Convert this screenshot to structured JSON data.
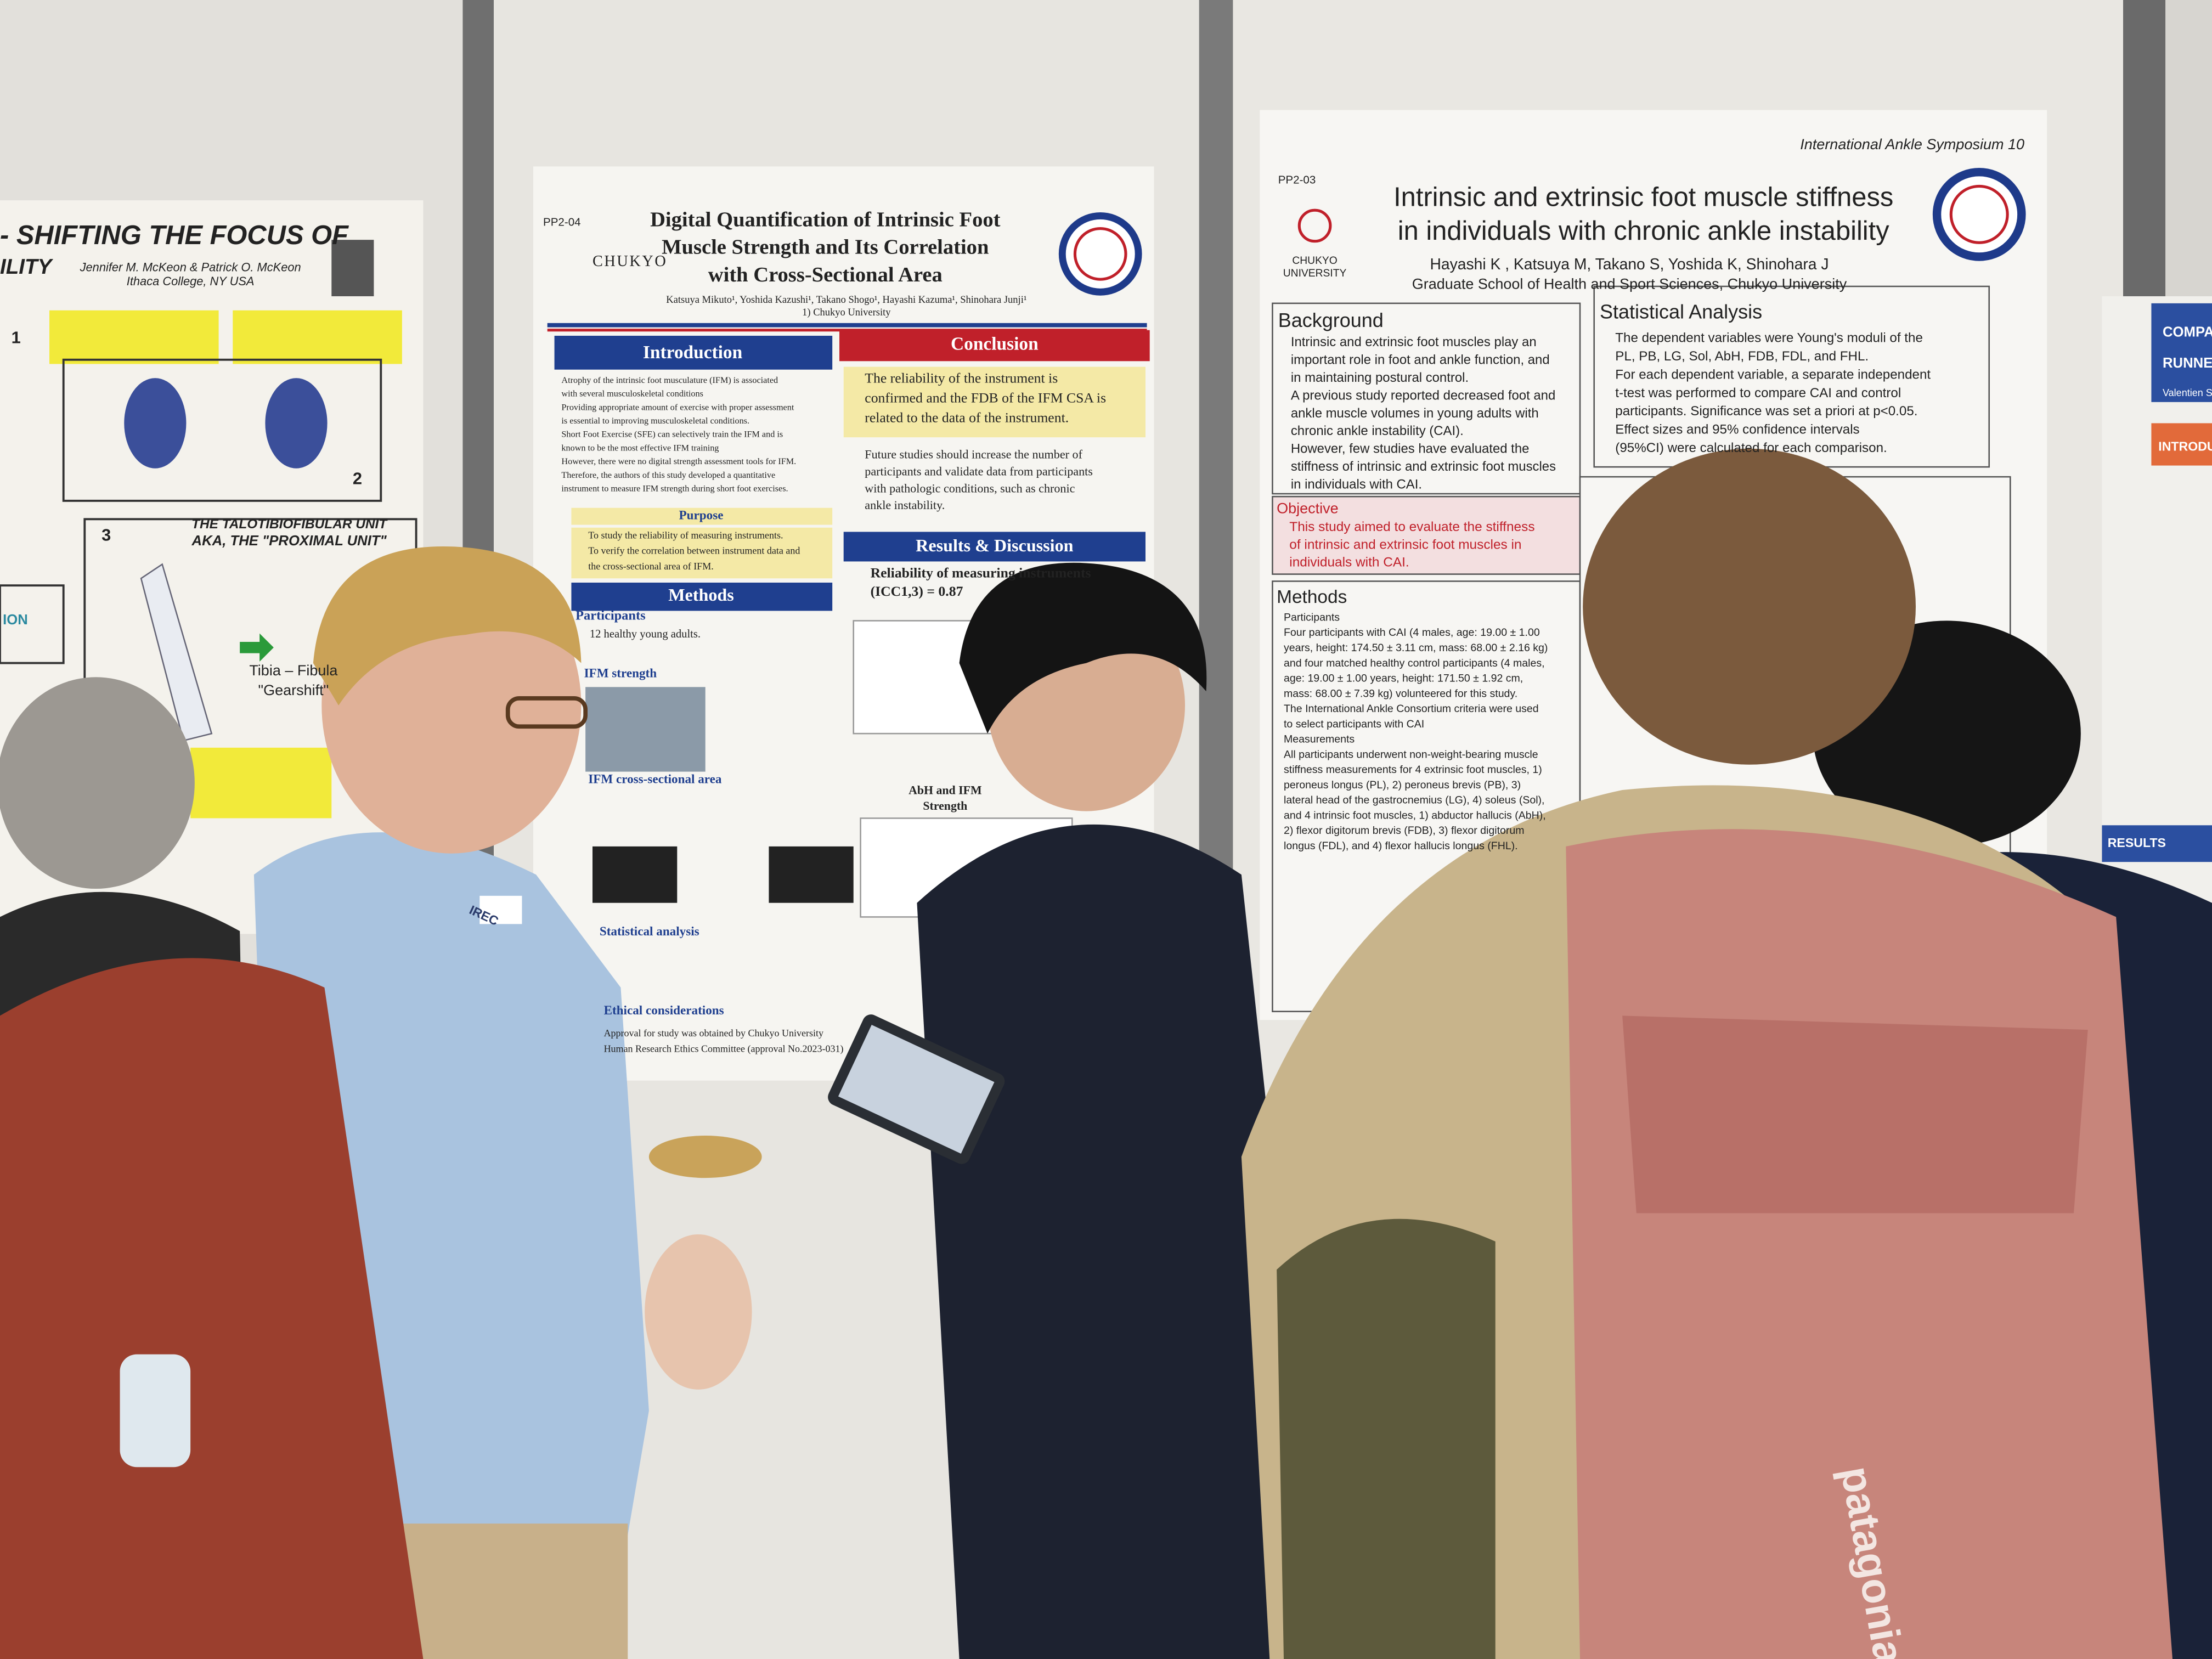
{
  "left_poster": {
    "title": "- SHIFTING THE FOCUS OF",
    "title_2": "ILITY",
    "authors": "Jennifer M. McKeon & Patrick O. McKeon",
    "affiliation": "Ithaca College, NY USA",
    "panel_numbers": [
      "1",
      "2",
      "3"
    ],
    "section_title": "THE TALOTIBIOFIBULAR UNIT",
    "section_subtitle": "AKA, THE \"PROXIMAL UNIT\"",
    "label": "Tibia – Fibula",
    "label_2": "\"Gearshift\"",
    "side_label": "ION"
  },
  "middle_poster": {
    "id": "PP2-04",
    "logo": "CHUKYO",
    "title_lines": [
      "Digital Quantification of Intrinsic Foot",
      "Muscle Strength and Its Correlation",
      "with Cross-Sectional Area"
    ],
    "authors": "Katsuya Mikuto¹, Yoshida Kazushi¹, Takano Shogo¹, Hayashi Kazuma¹, Shinohara Junji¹",
    "affiliation": "1) Chukyo University",
    "introduction": {
      "heading": "Introduction",
      "lines": [
        "Atrophy of the intrinsic foot musculature (IFM) is associated",
        "with several musculoskeletal conditions",
        "Providing appropriate amount of exercise with proper assessment",
        "is essential to improving musculoskeletal conditions.",
        "Short Foot Exercise (SFE) can selectively train the IFM and is",
        "known to be the most effective IFM training",
        "However, there were no digital strength assessment tools for IFM.",
        "Therefore, the authors of this study developed a quantitative",
        "instrument to measure IFM strength during short foot exercises."
      ]
    },
    "purpose": {
      "heading": "Purpose",
      "lines": [
        "To study the reliability of measuring instruments.",
        "To verify the correlation between instrument data and",
        "the cross-sectional area of IFM."
      ]
    },
    "conclusion": {
      "heading": "Conclusion",
      "lines": [
        "The reliability of the instrument is",
        "confirmed and the FDB of the IFM CSA is",
        "related to the data of the instrument."
      ],
      "future": [
        "Future studies should increase the number of",
        "participants and validate data from participants",
        "with pathologic conditions, such as chronic",
        "ankle instability."
      ]
    },
    "methods": {
      "heading": "Methods",
      "participants": "Participants",
      "participants_text": "12 healthy young adults.",
      "strength": "IFM strength",
      "csa": "IFM cross-sectional area",
      "statistics": "Statistical analysis",
      "ethics": "Ethical considerations",
      "ethics_lines": [
        "Approval for study was obtained by Chukyo University",
        "Human Research Ethics Committee (approval No.2023-031)"
      ]
    },
    "results": {
      "heading": "Results & Discussion",
      "lines": [
        "Reliability of measuring instruments",
        "(ICC1,3) = 0.87"
      ]
    },
    "chart_label": [
      "AbH and IFM",
      "Strength"
    ]
  },
  "right_poster": {
    "header": "International Ankle Symposium 10",
    "id": "PP2-03",
    "logo": [
      "CHUKYO",
      "UNIVERSITY"
    ],
    "title_lines": [
      "Intrinsic and extrinsic foot muscle stiffness",
      "in individuals with chronic ankle instability"
    ],
    "authors": "Hayashi K , Katsuya M, Takano S, Yoshida K, Shinohara J",
    "affiliation": "Graduate School of Health and Sport Sciences, Chukyo University",
    "background": {
      "heading": "Background",
      "lines": [
        "Intrinsic and extrinsic foot muscles play an",
        "important role in foot and ankle function, and",
        "in maintaining postural control.",
        "A previous study reported decreased foot and",
        "ankle muscle volumes in young adults with",
        "chronic ankle instability (CAI).",
        "However, few studies have evaluated the",
        "stiffness of intrinsic and extrinsic foot muscles",
        "in individuals with CAI."
      ]
    },
    "statistics": {
      "heading": "Statistical Analysis",
      "lines": [
        "The dependent variables were Young's moduli of the",
        "PL, PB, LG, Sol, AbH, FDB, FDL, and FHL.",
        "For each dependent variable, a separate independent",
        "t-test was performed to compare CAI and control",
        "participants. Significance was set a priori at p<0.05.",
        "Effect sizes and 95% confidence intervals",
        "(95%CI) were calculated for each comparison."
      ]
    },
    "objective": {
      "heading": "Objective",
      "lines": [
        "This study aimed to evaluate the stiffness",
        "of intrinsic and extrinsic foot muscles in",
        "individuals with CAI."
      ]
    },
    "methods": {
      "heading": "Methods",
      "lines": [
        "Participants",
        "Four participants with CAI (4 males, age: 19.00 ± 1.00",
        "years, height: 174.50 ± 3.11 cm, mass: 68.00 ± 2.16 kg)",
        "and four matched healthy control participants (4 males,",
        "age: 19.00 ± 1.00 years, height: 171.50 ± 1.92 cm,",
        "mass: 68.00 ± 7.39 kg) volunteered for this study.",
        "The International Ankle Consortium criteria were used",
        "to select participants with CAI",
        "Measurements",
        "All participants underwent non-weight-bearing muscle",
        "stiffness measurements for 4 extrinsic foot muscles, 1)",
        "peroneus longus (PL), 2) peroneus brevis (PB), 3)",
        "lateral head of the gastrocnemius (LG), 4) soleus (Sol),",
        "and 4 intrinsic foot muscles, 1) abductor hallucis (AbH),",
        "2) flexor digitorum brevis (FDB), 3) flexor digitorum",
        "longus (FDL), and 4) flexor hallucis longus (FHL)."
      ]
    }
  },
  "far_right_poster": {
    "title": "COMPARI",
    "title_2": "RUNNERS",
    "authors": "Valentien Spa",
    "introduction": "INTRODUCTI",
    "results": "RESULTS"
  },
  "badge": "IREC",
  "backpack_brand": "patagonia"
}
